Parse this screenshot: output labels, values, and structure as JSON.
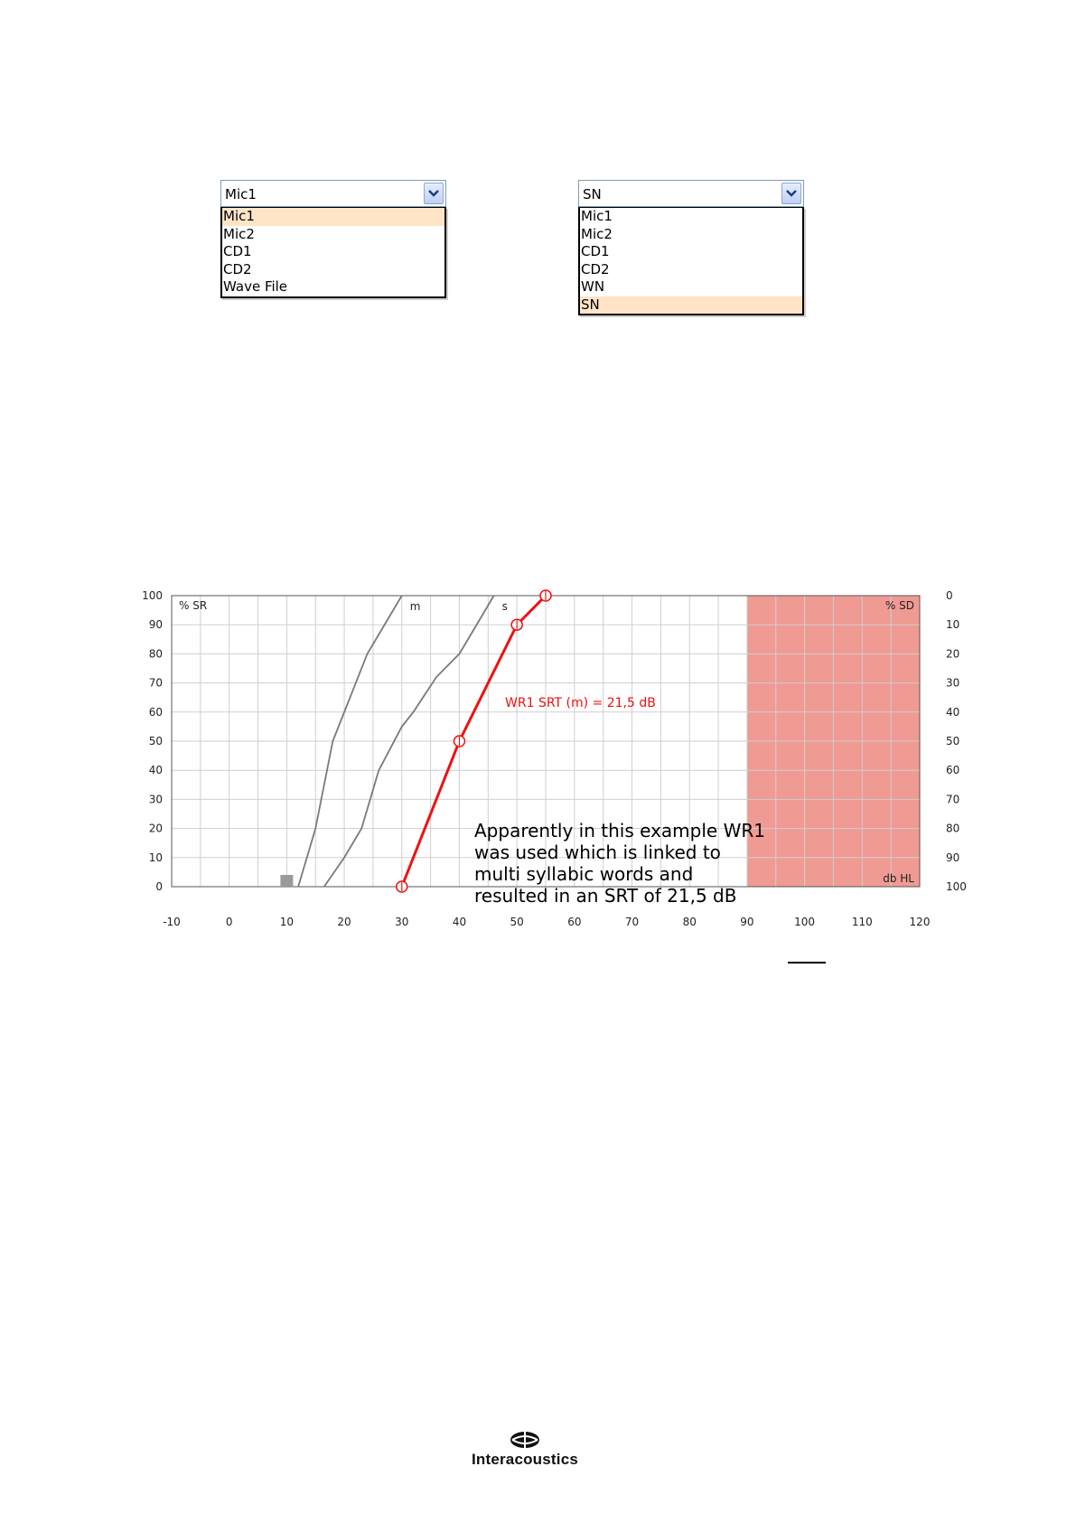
{
  "dropdowns": [
    {
      "value": "Mic1",
      "options": [
        "Mic1",
        "Mic2",
        "CD1",
        "CD2",
        "Wave File"
      ],
      "selected_index": 0
    },
    {
      "value": "SN",
      "options": [
        "Mic1",
        "Mic2",
        "CD1",
        "CD2",
        "WN",
        "SN"
      ],
      "selected_index": 5
    }
  ],
  "chart_data": {
    "type": "line",
    "x_ticks": [
      "-10",
      "0",
      "10",
      "20",
      "30",
      "40",
      "50",
      "60",
      "70",
      "80",
      "90",
      "100",
      "110",
      "120"
    ],
    "y_left_ticks": [
      "100",
      "90",
      "80",
      "70",
      "60",
      "50",
      "40",
      "30",
      "20",
      "10",
      "0"
    ],
    "y_right_ticks": [
      "0",
      "10",
      "20",
      "30",
      "40",
      "50",
      "60",
      "70",
      "80",
      "90",
      "100"
    ],
    "xlim": [
      -10,
      120
    ],
    "ylim": [
      0,
      100
    ],
    "left_axis_label": "% SR",
    "right_axis_label": "% SD",
    "corner_label": "db HL",
    "grid": true,
    "reference_curves": [
      {
        "label": "m",
        "color": "#7a7a7a",
        "points": [
          [
            12,
            0
          ],
          [
            15,
            20
          ],
          [
            18,
            50
          ],
          [
            22,
            70
          ],
          [
            24,
            80
          ],
          [
            30,
            100
          ]
        ]
      },
      {
        "label": "s",
        "color": "#7a7a7a",
        "points": [
          [
            16.5,
            0
          ],
          [
            20,
            10
          ],
          [
            23,
            20
          ],
          [
            26,
            40
          ],
          [
            30,
            55
          ],
          [
            32,
            60
          ],
          [
            36,
            72
          ],
          [
            40,
            80
          ],
          [
            46,
            100
          ]
        ]
      }
    ],
    "series": [
      {
        "name": "WR1 SRT (m) = 21,5 dB",
        "color": "#ee1111",
        "points": [
          [
            30,
            0
          ],
          [
            40,
            50
          ],
          [
            50,
            90
          ],
          [
            55,
            100
          ]
        ]
      }
    ],
    "square_marker": {
      "x": 10,
      "y": 0,
      "color": "#9a9a9a"
    },
    "shaded_region": {
      "x_from": 90,
      "x_to": 120,
      "y_from": 0,
      "y_to": 100,
      "color": "#f09a94"
    },
    "annotation": "Apparently in this example WR1 was used which is linked to multi syllabic words and resulted in an SRT of 21,5 dB"
  },
  "logo": {
    "text": "Interacoustics",
    "icon": "interacoustics-logo-icon"
  }
}
